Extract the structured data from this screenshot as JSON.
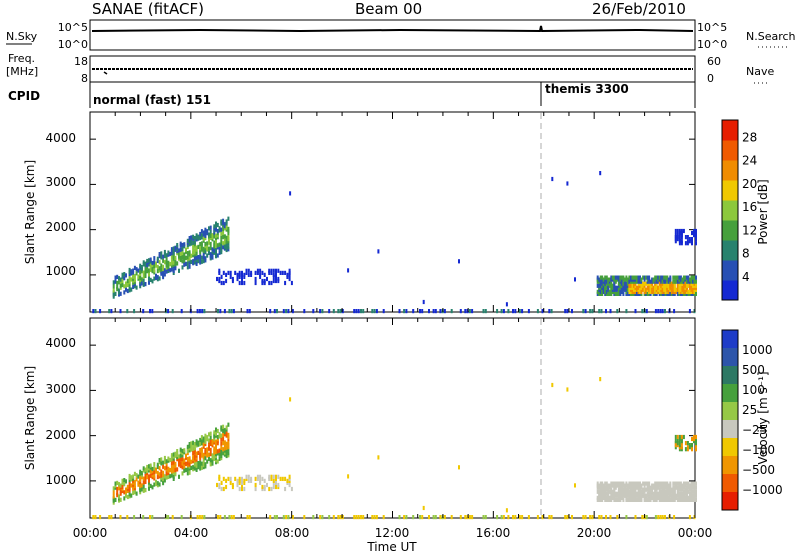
{
  "header": {
    "left_title": "SANAE (fitACF)",
    "center_title": "Beam 00",
    "date": "26/Feb/2010"
  },
  "strips": {
    "nsky": {
      "label": "N.Sky",
      "ticks": [
        "10^5",
        "10^0"
      ]
    },
    "nsearch": {
      "label": "N.Search",
      "ticks": [
        "10^5",
        "10^0"
      ]
    },
    "freq": {
      "label_line1": "Freq.",
      "label_line2": "[MHz]",
      "ticks": [
        "18",
        "8"
      ]
    },
    "nave": {
      "label": "Nave",
      "ticks": [
        "60",
        "0"
      ]
    },
    "cpid": {
      "label": "CPID",
      "segments": [
        {
          "name": "normal (fast) 151",
          "start_h": 0.0
        },
        {
          "name": "themis 3300",
          "start_h": 18.0
        }
      ]
    }
  },
  "x_axis": {
    "label": "Time UT",
    "ticks": [
      "00:00",
      "04:00",
      "08:00",
      "12:00",
      "16:00",
      "20:00",
      "00:00"
    ],
    "range_h": [
      0,
      24
    ]
  },
  "colors": {
    "power": [
      "#1428d2",
      "#2850b4",
      "#28826e",
      "#46a03c",
      "#8cc83c",
      "#f0c800",
      "#f08c00",
      "#f05a00",
      "#e61e00"
    ],
    "velocity": [
      "#1e3cc8",
      "#2d55aa",
      "#2d7864",
      "#46a03c",
      "#96c846",
      "#c8c8be",
      "#f0c800",
      "#f09600",
      "#f05a00",
      "#e61e00"
    ],
    "marker_line": "#bbbbbb"
  },
  "chart_data": [
    {
      "type": "heatmap",
      "title": "",
      "xlabel": "",
      "ylabel": "Slant Range [km]",
      "xlim": [
        0,
        24
      ],
      "ylim": [
        180,
        4600
      ],
      "yticks": [
        "1000",
        "2000",
        "3000",
        "4000"
      ],
      "grid": false,
      "colorbar": {
        "label": "Power [dB]",
        "ticks": [
          "4",
          "8",
          "12",
          "16",
          "20",
          "24",
          "28"
        ],
        "range": [
          0,
          31
        ]
      },
      "regions": [
        {
          "t": [
            0.9,
            5.5
          ],
          "r": [
            600,
            2050
          ],
          "level": "green band (8-16 dB)"
        },
        {
          "t": [
            20.1,
            24.0
          ],
          "r": [
            580,
            980
          ],
          "level": "green/orange band (8-24 dB)"
        },
        {
          "t": [
            0.0,
            24.0
          ],
          "r": [
            180,
            260
          ],
          "level": "ground scatter floor (4-8 dB)"
        }
      ]
    },
    {
      "type": "heatmap",
      "title": "",
      "xlabel": "Time UT",
      "ylabel": "Slant Range [km]",
      "xlim": [
        0,
        24
      ],
      "ylim": [
        180,
        4600
      ],
      "yticks": [
        "1000",
        "2000",
        "3000",
        "4000"
      ],
      "grid": false,
      "colorbar": {
        "label": "Velocity [m s⁻¹]",
        "ticks": [
          "1000",
          "500",
          "100",
          "25",
          "−25",
          "−100",
          "−500",
          "−1000"
        ]
      },
      "regions": [
        {
          "t": [
            0.9,
            6.2
          ],
          "r": [
            600,
            2100
          ],
          "level": "-100 to -500 m/s"
        },
        {
          "t": [
            20.1,
            24.0
          ],
          "r": [
            580,
            980
          ],
          "level": "-25 to 25 m/s (ground scatter)"
        }
      ]
    }
  ]
}
